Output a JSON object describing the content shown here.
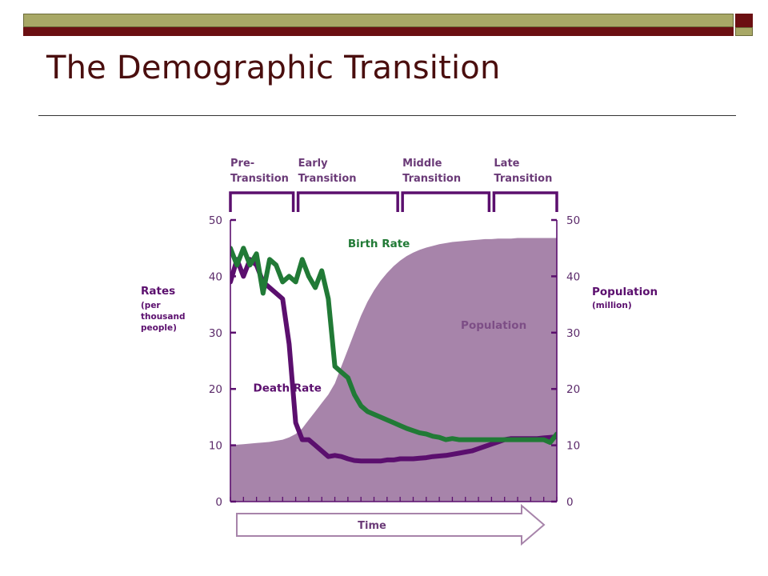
{
  "slide": {
    "title": "The Demographic Transition",
    "colors": {
      "title": "#4a0e0e",
      "topbar_olive": "#a8a866",
      "topbar_maroon": "#6b0f12"
    }
  },
  "chart_data": {
    "type": "line",
    "title": "",
    "xlabel": "Time",
    "ylabel": "Rates (per thousand people)",
    "ylabel_lines": [
      "Rates",
      "(per",
      "thousand",
      "people)"
    ],
    "y2label_main": "Population",
    "y2label_sub": "(million)",
    "ylim": [
      0,
      50
    ],
    "y2lim": [
      0,
      50
    ],
    "yticks": [
      0,
      10,
      20,
      30,
      40,
      50
    ],
    "y2ticks": [
      0,
      10,
      20,
      30,
      40,
      50
    ],
    "grid": false,
    "stages": [
      {
        "line1": "Pre-",
        "line2": "Transition",
        "start": 0,
        "end": 10
      },
      {
        "line1": "Early",
        "line2": "Transition",
        "start": 10,
        "end": 26
      },
      {
        "line1": "Middle",
        "line2": "Transition",
        "start": 26,
        "end": 40
      },
      {
        "line1": "Late",
        "line2": "Transition",
        "start": 40,
        "end": 50
      }
    ],
    "x": [
      0,
      1,
      2,
      3,
      4,
      5,
      6,
      7,
      8,
      9,
      10,
      11,
      12,
      13,
      14,
      15,
      16,
      17,
      18,
      19,
      20,
      21,
      22,
      23,
      24,
      25,
      26,
      27,
      28,
      29,
      30,
      31,
      32,
      33,
      34,
      35,
      36,
      37,
      38,
      39,
      40,
      41,
      42,
      43,
      44,
      45,
      46,
      47,
      48,
      49,
      50
    ],
    "series": [
      {
        "name": "Birth Rate",
        "color": "#217a36",
        "values": [
          45,
          42,
          45,
          42,
          44,
          37,
          43,
          42,
          39,
          40,
          39,
          43,
          40,
          38,
          41,
          36,
          24,
          23,
          22,
          19,
          17,
          16,
          15.5,
          15,
          14.5,
          14,
          13.5,
          13,
          12.6,
          12.2,
          12,
          11.6,
          11.4,
          11,
          11.2,
          11,
          11,
          11,
          11,
          11,
          11,
          11,
          11,
          11,
          11,
          11,
          11,
          11,
          11,
          10.5,
          12
        ]
      },
      {
        "name": "Death Rate",
        "color": "#5b0f6e",
        "values": [
          39,
          43,
          40,
          43,
          42,
          39,
          38,
          37,
          36,
          28,
          14,
          11,
          11,
          10,
          9,
          8,
          8.2,
          8,
          7.6,
          7.3,
          7.2,
          7.2,
          7.2,
          7.2,
          7.4,
          7.4,
          7.6,
          7.6,
          7.6,
          7.7,
          7.8,
          8,
          8.1,
          8.2,
          8.4,
          8.6,
          8.8,
          9,
          9.4,
          9.8,
          10.2,
          10.6,
          11,
          11.2,
          11.2,
          11.2,
          11.2,
          11.2,
          11.3,
          11.4,
          11.5
        ]
      },
      {
        "name": "Population",
        "type": "area",
        "axis": "right",
        "color": "#a784aa",
        "values": [
          10,
          10.1,
          10.2,
          10.3,
          10.4,
          10.5,
          10.6,
          10.8,
          11,
          11.4,
          12,
          13,
          14.5,
          16,
          17.5,
          19,
          21,
          24,
          27,
          30,
          33,
          35.5,
          37.5,
          39.2,
          40.6,
          41.8,
          42.8,
          43.6,
          44.2,
          44.7,
          45.1,
          45.4,
          45.7,
          45.9,
          46.1,
          46.2,
          46.3,
          46.4,
          46.5,
          46.6,
          46.6,
          46.7,
          46.7,
          46.7,
          46.8,
          46.8,
          46.8,
          46.8,
          46.8,
          46.8,
          46.8
        ]
      }
    ]
  }
}
